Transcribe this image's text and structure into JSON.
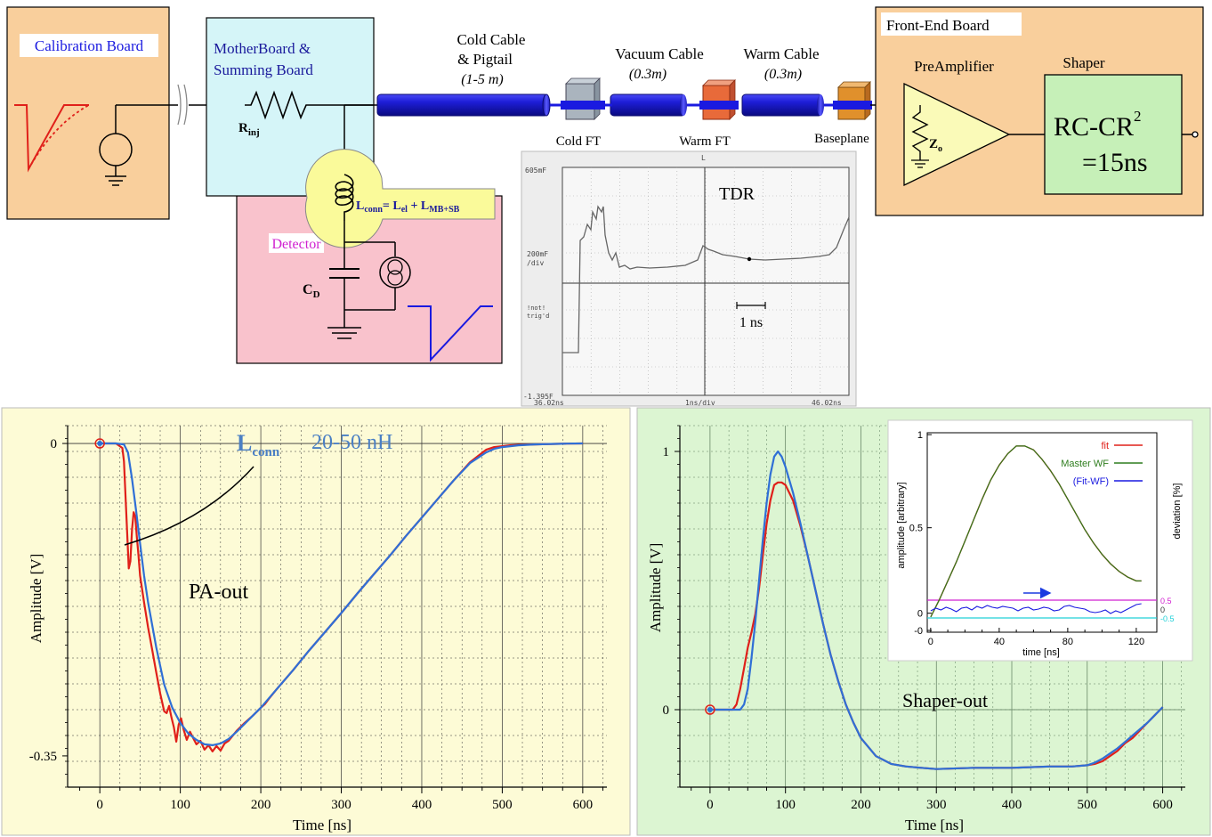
{
  "schematic": {
    "calibration_board": "Calibration Board",
    "motherboard_line1": "MotherBoard &",
    "motherboard_line2": "Summing Board",
    "r_inj_main": "R",
    "r_inj_sub": "inj",
    "detector": "Detector",
    "cd_main": "C",
    "cd_sub": "D",
    "lconn_a": "L",
    "lconn_a_sub": "conn",
    "lconn_eq": "= L",
    "lconn_b_sub": "el",
    "lconn_plus": " + L",
    "lconn_c_sub": "MB+SB",
    "cold_cable_line1": "Cold Cable",
    "cold_cable_line2": "& Pigtail",
    "cold_cable_len": "(1-5 m)",
    "vacuum_cable": "Vacuum Cable",
    "vacuum_len": "(0.3m)",
    "warm_cable": "Warm Cable",
    "warm_len": "(0.3m)",
    "cold_ft": "Cold FT",
    "warm_ft": "Warm  FT",
    "baseplane": "Baseplane",
    "front_end_board": "Front-End Board",
    "preamplifier": "PreAmplifier",
    "shaper": "Shaper",
    "zo_main": "Z",
    "zo_sub": "o",
    "rc_cr_main": "RC-CR",
    "rc_cr_sup": "2",
    "rc_cr_value": "=15ns"
  },
  "tdr": {
    "title": "TDR",
    "top_scale": "605mF",
    "top_marker": "L",
    "div_label_1": "200mF",
    "div_label_2": "/div",
    "trig_1": "!not!",
    "trig_2": "trig'd",
    "bottom_scale": "-1.395F",
    "x_start": "36.02ns",
    "x_div": "1ns/div",
    "x_end": "46.02ns",
    "scale_bar": "1 ns"
  },
  "chart_data": [
    {
      "type": "line",
      "name": "pa-out",
      "annotation": "PA-out",
      "lconn_label_main": "L",
      "lconn_label_sub": "conn",
      "lconn_value": "20-50 nH",
      "xlabel": "Time [ns]",
      "ylabel": "Amplitude [V]",
      "xlim": [
        -40,
        630
      ],
      "ylim": [
        -0.385,
        0.02
      ],
      "xticks": [
        0,
        100,
        200,
        300,
        400,
        500,
        600
      ],
      "yticks": [
        0,
        -0.35
      ],
      "ytick_labels": [
        "0",
        "-0.35"
      ],
      "grid": true,
      "colors": {
        "background": "#fdfbd6",
        "grid": "#333333",
        "red": "#e0201a",
        "blue": "#2f6fd6",
        "label_blue": "#4a7fc4"
      },
      "series": [
        {
          "color": "red",
          "x": [
            0,
            20,
            28,
            30,
            32,
            34,
            36,
            38,
            40,
            42,
            44,
            46,
            48,
            50,
            55,
            60,
            65,
            70,
            75,
            80,
            83,
            86,
            89,
            92,
            95,
            98,
            101,
            104,
            108,
            112,
            116,
            120,
            125,
            130,
            135,
            140,
            145,
            150,
            155,
            160,
            170,
            180,
            190,
            200,
            205,
            210,
            220,
            240,
            260,
            280,
            300,
            320,
            340,
            360,
            380,
            400,
            420,
            440,
            460,
            480,
            490,
            500,
            510,
            520,
            540,
            560,
            580,
            600
          ],
          "y": [
            0,
            0,
            -0.005,
            -0.02,
            -0.06,
            -0.1,
            -0.14,
            -0.132,
            -0.096,
            -0.077,
            -0.082,
            -0.105,
            -0.125,
            -0.148,
            -0.178,
            -0.206,
            -0.231,
            -0.256,
            -0.28,
            -0.3,
            -0.302,
            -0.294,
            -0.307,
            -0.318,
            -0.334,
            -0.315,
            -0.308,
            -0.32,
            -0.332,
            -0.323,
            -0.33,
            -0.337,
            -0.333,
            -0.343,
            -0.338,
            -0.345,
            -0.339,
            -0.344,
            -0.336,
            -0.333,
            -0.322,
            -0.313,
            -0.305,
            -0.296,
            -0.292,
            -0.286,
            -0.275,
            -0.254,
            -0.232,
            -0.211,
            -0.19,
            -0.168,
            -0.147,
            -0.126,
            -0.104,
            -0.083,
            -0.062,
            -0.041,
            -0.021,
            -0.007,
            -0.004,
            -0.003,
            -0.002,
            -0.0015,
            -0.001,
            -0.0005,
            -0.0002,
            0
          ]
        },
        {
          "color": "blue",
          "x": [
            0,
            20,
            30,
            35,
            40,
            45,
            50,
            55,
            60,
            70,
            80,
            90,
            100,
            110,
            120,
            130,
            140,
            150,
            160,
            170,
            180,
            190,
            200,
            220,
            240,
            260,
            280,
            300,
            320,
            340,
            360,
            380,
            400,
            420,
            440,
            460,
            480,
            490,
            500,
            510,
            520,
            540,
            560,
            580,
            600
          ],
          "y": [
            0,
            0,
            -0.001,
            -0.01,
            -0.04,
            -0.075,
            -0.112,
            -0.148,
            -0.178,
            -0.228,
            -0.27,
            -0.296,
            -0.313,
            -0.325,
            -0.332,
            -0.337,
            -0.338,
            -0.336,
            -0.331,
            -0.323,
            -0.314,
            -0.305,
            -0.296,
            -0.275,
            -0.254,
            -0.232,
            -0.211,
            -0.19,
            -0.168,
            -0.147,
            -0.126,
            -0.104,
            -0.083,
            -0.062,
            -0.041,
            -0.022,
            -0.01,
            -0.006,
            -0.004,
            -0.003,
            -0.002,
            -0.001,
            -0.0005,
            -0.0002,
            0
          ]
        }
      ]
    },
    {
      "type": "line",
      "name": "shaper-out",
      "annotation": "Shaper-out",
      "xlabel": "Time [ns]",
      "ylabel": "Amplitude [V]",
      "xlim": [
        -40,
        630
      ],
      "ylim": [
        -0.3,
        1.1
      ],
      "xticks": [
        0,
        100,
        200,
        300,
        400,
        500,
        600
      ],
      "yticks": [
        0,
        1
      ],
      "grid": true,
      "colors": {
        "background": "#dcf5d2",
        "grid": "#5a7a5a",
        "red": "#e0201a",
        "blue": "#2f6fd6"
      },
      "series": [
        {
          "color": "red",
          "x": [
            0,
            30,
            35,
            40,
            45,
            50,
            55,
            60,
            65,
            70,
            75,
            80,
            85,
            90,
            95,
            100,
            110,
            120,
            130,
            140,
            150,
            160,
            170,
            180,
            190,
            200,
            220,
            240,
            260,
            280,
            300,
            350,
            400,
            450,
            480,
            500,
            510,
            520,
            530,
            540,
            550,
            560,
            570,
            580,
            590,
            600
          ],
          "y": [
            0,
            0,
            0.02,
            0.08,
            0.16,
            0.24,
            0.3,
            0.37,
            0.47,
            0.6,
            0.72,
            0.81,
            0.87,
            0.88,
            0.88,
            0.87,
            0.81,
            0.71,
            0.59,
            0.46,
            0.33,
            0.21,
            0.11,
            0.02,
            -0.05,
            -0.11,
            -0.18,
            -0.21,
            -0.22,
            -0.225,
            -0.23,
            -0.225,
            -0.225,
            -0.22,
            -0.22,
            -0.215,
            -0.21,
            -0.2,
            -0.18,
            -0.16,
            -0.13,
            -0.11,
            -0.08,
            -0.05,
            -0.02,
            0.01
          ]
        },
        {
          "color": "blue",
          "x": [
            0,
            30,
            40,
            45,
            50,
            55,
            60,
            65,
            70,
            75,
            80,
            85,
            90,
            95,
            100,
            110,
            120,
            130,
            140,
            150,
            160,
            170,
            180,
            190,
            200,
            220,
            240,
            260,
            280,
            300,
            350,
            400,
            450,
            480,
            500,
            510,
            520,
            530,
            540,
            550,
            560,
            570,
            580,
            590,
            600
          ],
          "y": [
            0,
            0,
            0,
            0.02,
            0.08,
            0.2,
            0.34,
            0.5,
            0.66,
            0.8,
            0.91,
            0.98,
            1,
            0.98,
            0.94,
            0.84,
            0.72,
            0.59,
            0.46,
            0.33,
            0.21,
            0.11,
            0.02,
            -0.05,
            -0.11,
            -0.18,
            -0.21,
            -0.22,
            -0.225,
            -0.23,
            -0.225,
            -0.225,
            -0.22,
            -0.22,
            -0.215,
            -0.205,
            -0.19,
            -0.17,
            -0.15,
            -0.125,
            -0.1,
            -0.075,
            -0.05,
            -0.02,
            0.01
          ]
        }
      ]
    },
    {
      "type": "line",
      "name": "inset-fit",
      "xlabel": "time [ns]",
      "ylabel": "amplitude [arbitrary]",
      "ylabel_right": "deviation [%]",
      "xlim": [
        -2,
        132
      ],
      "ylim": [
        -0.05,
        1.0
      ],
      "xticks": [
        0,
        40,
        80,
        120
      ],
      "yticks": [
        0,
        0.5,
        1
      ],
      "ytick_labels_left": [
        "-0",
        "0",
        "0.5",
        "1"
      ],
      "right_tick_labels": [
        "0.5",
        "0",
        "-0.5"
      ],
      "legend": [
        "fit",
        "Master WF",
        "(Fit-WF)"
      ],
      "legend_placement": "top-right",
      "colors": {
        "fit": "#e0201a",
        "master": "#2e7d1e",
        "dev": "#1a1ae0",
        "magenta": "#d020d0",
        "cyan": "#20d0d8",
        "arrow": "#1a3ae0"
      },
      "series": [
        {
          "name": "fit",
          "x": [
            0,
            5,
            10,
            15,
            20,
            25,
            30,
            35,
            40,
            45,
            50,
            55,
            60,
            65,
            70,
            75,
            80,
            85,
            90,
            95,
            100,
            105,
            110,
            115,
            120,
            123
          ],
          "y": [
            0.03,
            0.12,
            0.22,
            0.32,
            0.43,
            0.54,
            0.65,
            0.75,
            0.83,
            0.89,
            0.93,
            0.93,
            0.91,
            0.86,
            0.8,
            0.73,
            0.65,
            0.57,
            0.49,
            0.42,
            0.36,
            0.31,
            0.27,
            0.24,
            0.22,
            0.22
          ]
        },
        {
          "name": "Master WF",
          "x": [
            0,
            5,
            10,
            15,
            20,
            25,
            30,
            35,
            40,
            45,
            50,
            55,
            60,
            65,
            70,
            75,
            80,
            85,
            90,
            95,
            100,
            105,
            110,
            115,
            120,
            123
          ],
          "y": [
            0.03,
            0.12,
            0.22,
            0.32,
            0.43,
            0.54,
            0.65,
            0.75,
            0.83,
            0.89,
            0.93,
            0.93,
            0.91,
            0.86,
            0.8,
            0.73,
            0.65,
            0.57,
            0.49,
            0.42,
            0.36,
            0.31,
            0.27,
            0.24,
            0.22,
            0.22
          ]
        },
        {
          "name": "(Fit-WF)",
          "x": [
            0,
            3,
            6,
            9,
            12,
            15,
            18,
            21,
            24,
            27,
            30,
            33,
            36,
            39,
            42,
            45,
            48,
            51,
            54,
            57,
            60,
            63,
            66,
            69,
            72,
            75,
            78,
            81,
            84,
            87,
            90,
            93,
            96,
            99,
            102,
            105,
            108,
            111,
            114,
            117,
            120,
            123
          ],
          "y": [
            -0.1,
            0.05,
            -0.05,
            0.1,
            0.0,
            -0.15,
            0.05,
            0.1,
            -0.05,
            0.15,
            0.05,
            0.2,
            0.1,
            0.05,
            0.15,
            0.1,
            0.05,
            -0.1,
            0.05,
            0.1,
            -0.05,
            0.0,
            0.1,
            0.05,
            -0.1,
            -0.05,
            0.15,
            0.2,
            0.1,
            0.05,
            0.0,
            -0.15,
            -0.2,
            -0.15,
            -0.05,
            -0.25,
            -0.1,
            -0.2,
            -0.05,
            0.1,
            0.25,
            0.3
          ]
        }
      ]
    }
  ]
}
